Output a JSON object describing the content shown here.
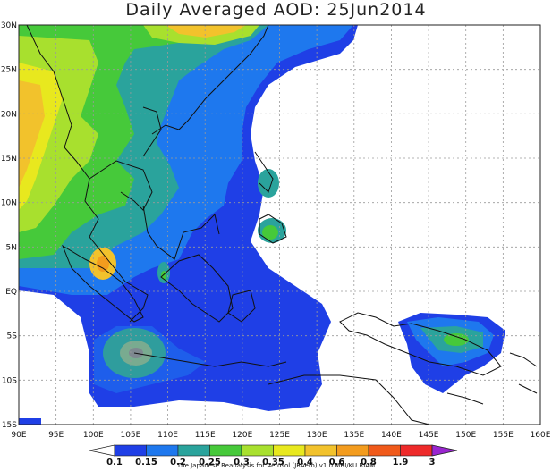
{
  "title": "Daily Averaged AOD: 25Jun2014",
  "map": {
    "lon_range": [
      90,
      160
    ],
    "lat_range": [
      -15,
      30
    ],
    "lon_ticks": [
      "90E",
      "95E",
      "100E",
      "105E",
      "110E",
      "115E",
      "120E",
      "125E",
      "130E",
      "135E",
      "140E",
      "145E",
      "150E",
      "155E",
      "160E"
    ],
    "lat_ticks": [
      "30N",
      "25N",
      "20N",
      "15N",
      "10N",
      "5N",
      "EQ",
      "5S",
      "10S",
      "15S"
    ]
  },
  "colorbar": {
    "labels": [
      "0.1",
      "0.15",
      "0.2",
      "0.25",
      "0.3",
      "0.35",
      "0.4",
      "0.6",
      "0.8",
      "1.9",
      "3"
    ],
    "colors": [
      "#1f3fe6",
      "#1e78ee",
      "#2aa39c",
      "#46c93a",
      "#a8e02e",
      "#e8e81e",
      "#f2c22c",
      "#f39c1e",
      "#f05a1a",
      "#ee2a2a",
      "#9a26d0"
    ]
  },
  "credit": "The Japanese Reanalysis for Aerosol (JRAero) v1.0 MRI/KU RIAM"
}
